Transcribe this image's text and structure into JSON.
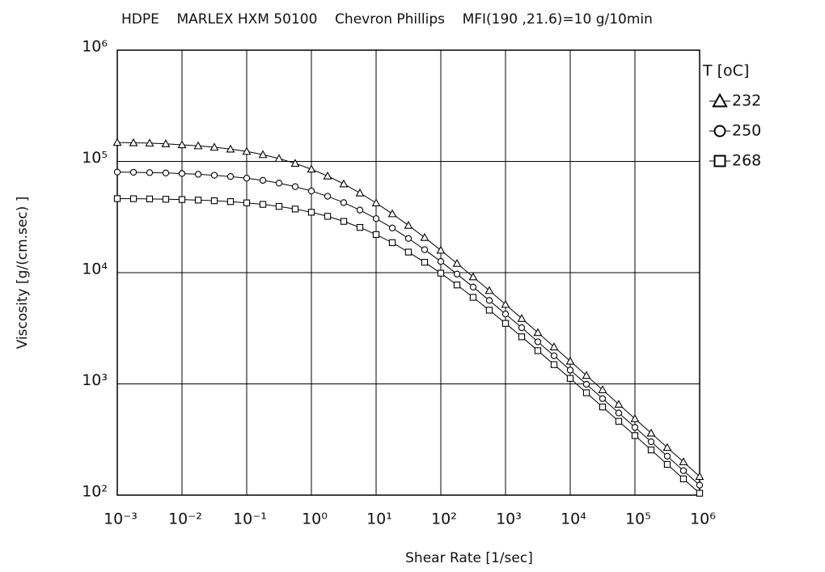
{
  "chart_data": {
    "type": "line",
    "title": "HDPE    MARLEX HXM 50100    Chevron Phillips    MFI(190 ,21.6)=10 g/10min",
    "x_label": "Shear Rate [1/sec]",
    "y_label": "Viscosity [g/(cm.sec) ]",
    "legend_title": "T [oC]",
    "legend_position": "right",
    "log_x": true,
    "log_y": true,
    "grid": true,
    "xlim": [
      0.001,
      1000000
    ],
    "ylim": [
      100,
      1000000
    ],
    "xticks": [
      {
        "value": 0.001,
        "label": "10⁻³"
      },
      {
        "value": 0.01,
        "label": "10⁻²"
      },
      {
        "value": 0.1,
        "label": "10⁻¹"
      },
      {
        "value": 1,
        "label": "10⁰"
      },
      {
        "value": 10,
        "label": "10¹"
      },
      {
        "value": 100,
        "label": "10²"
      },
      {
        "value": 1000,
        "label": "10³"
      },
      {
        "value": 10000,
        "label": "10⁴"
      },
      {
        "value": 100000,
        "label": "10⁵"
      },
      {
        "value": 1000000,
        "label": "10⁶"
      }
    ],
    "yticks": [
      {
        "value": 100,
        "label": "10²"
      },
      {
        "value": 1000,
        "label": "10³"
      },
      {
        "value": 10000,
        "label": "10⁴"
      },
      {
        "value": 100000,
        "label": "10⁵"
      },
      {
        "value": 1000000,
        "label": "10⁶"
      }
    ],
    "x": [
      0.001,
      0.00178,
      0.00316,
      0.00562,
      0.01,
      0.0178,
      0.0316,
      0.0562,
      0.1,
      0.178,
      0.316,
      0.562,
      1,
      1.78,
      3.16,
      5.62,
      10,
      17.8,
      31.6,
      56.2,
      100,
      178,
      316,
      562,
      1000,
      1780,
      3160,
      5620,
      10000,
      17800,
      31600,
      56200,
      100000,
      178000,
      316000,
      562000,
      1000000
    ],
    "series": [
      {
        "name": "232",
        "color": "#000000",
        "marker": "triangle",
        "values": [
          148000,
          147000,
          146000,
          144000,
          141000,
          138000,
          134000,
          129000,
          123000,
          115000,
          106000,
          96000,
          85100,
          73900,
          62700,
          52000,
          42300,
          33800,
          26600,
          20700,
          15900,
          12100,
          9160,
          6900,
          5180,
          3870,
          2890,
          2150,
          1600,
          1190,
          885,
          656,
          487,
          361,
          268,
          199,
          147
        ]
      },
      {
        "name": "250",
        "color": "#000000",
        "marker": "circle",
        "values": [
          80200,
          79800,
          79300,
          78700,
          77800,
          76600,
          75100,
          73100,
          70700,
          67600,
          63800,
          59300,
          54200,
          48600,
          42600,
          36500,
          30600,
          25200,
          20300,
          16100,
          12600,
          9700,
          7420,
          5630,
          4250,
          3200,
          2390,
          1790,
          1330,
          993,
          738,
          548,
          407,
          302,
          224,
          166,
          123
        ]
      },
      {
        "name": "268",
        "color": "#000000",
        "marker": "square",
        "values": [
          46300,
          46200,
          46000,
          45700,
          45400,
          44900,
          44300,
          43500,
          42400,
          41100,
          39400,
          37300,
          34900,
          32100,
          28900,
          25500,
          22000,
          18600,
          15300,
          12400,
          9890,
          7750,
          6000,
          4600,
          3500,
          2650,
          1990,
          1490,
          1120,
          832,
          620,
          461,
          343,
          255,
          189,
          140,
          104
        ]
      }
    ]
  }
}
